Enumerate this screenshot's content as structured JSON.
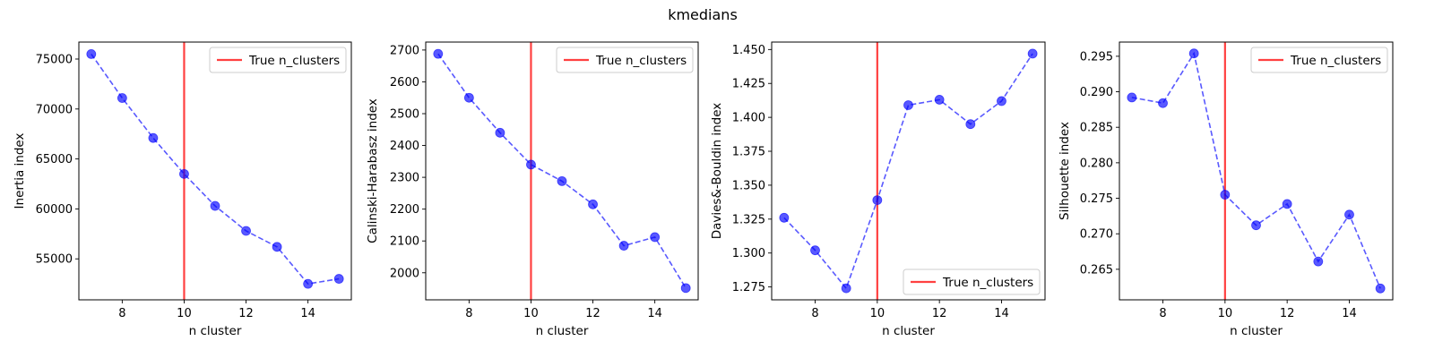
{
  "figure": {
    "title": "kmedians"
  },
  "chart_data": [
    {
      "type": "line",
      "ylabel": "Inertia index",
      "xlabel": "n cluster",
      "x": [
        7,
        8,
        9,
        10,
        11,
        12,
        13,
        14,
        15
      ],
      "series": [
        {
          "values": [
            75500,
            71100,
            67100,
            63500,
            60300,
            57800,
            56200,
            52500,
            53000
          ],
          "color": "#0000ff",
          "style": "dashed with circle markers"
        }
      ],
      "xlim": [
        6.6,
        15.4
      ],
      "ylim": [
        50900,
        76700
      ],
      "xticks": [
        "8",
        "10",
        "12",
        "14"
      ],
      "yticks": [
        "55000",
        "60000",
        "65000",
        "70000",
        "75000"
      ],
      "reference_line": {
        "x": 10,
        "label": "True n_clusters",
        "color": "#ff0000"
      },
      "legend": "top-right"
    },
    {
      "type": "line",
      "ylabel": "Calinski-Harabasz index",
      "xlabel": "n cluster",
      "x": [
        7,
        8,
        9,
        10,
        11,
        12,
        13,
        14,
        15
      ],
      "series": [
        {
          "values": [
            2688,
            2550,
            2440,
            2340,
            2288,
            2215,
            2085,
            2112,
            1952
          ],
          "color": "#0000ff",
          "style": "dashed with circle markers"
        }
      ],
      "xlim": [
        6.6,
        15.4
      ],
      "ylim": [
        1915,
        2725
      ],
      "xticks": [
        "8",
        "10",
        "12",
        "14"
      ],
      "yticks": [
        "2000",
        "2100",
        "2200",
        "2300",
        "2400",
        "2500",
        "2600",
        "2700"
      ],
      "reference_line": {
        "x": 10,
        "label": "True n_clusters",
        "color": "#ff0000"
      },
      "legend": "top-right"
    },
    {
      "type": "line",
      "ylabel": "Davies&-Bouldin index",
      "xlabel": "n cluster",
      "x": [
        7,
        8,
        9,
        10,
        11,
        12,
        13,
        14,
        15
      ],
      "series": [
        {
          "values": [
            1.326,
            1.302,
            1.274,
            1.339,
            1.409,
            1.413,
            1.395,
            1.412,
            1.447
          ],
          "color": "#0000ff",
          "style": "dashed with circle markers"
        }
      ],
      "xlim": [
        6.6,
        15.4
      ],
      "ylim": [
        1.2655,
        1.4555
      ],
      "xticks": [
        "8",
        "10",
        "12",
        "14"
      ],
      "yticks": [
        "1.275",
        "1.300",
        "1.325",
        "1.350",
        "1.375",
        "1.400",
        "1.425",
        "1.450"
      ],
      "reference_line": {
        "x": 10,
        "label": "True n_clusters",
        "color": "#ff0000"
      },
      "legend": "bottom-right"
    },
    {
      "type": "line",
      "ylabel": "Silhouette index",
      "xlabel": "n cluster",
      "x": [
        7,
        8,
        9,
        10,
        11,
        12,
        13,
        14,
        15
      ],
      "series": [
        {
          "values": [
            0.2892,
            0.2884,
            0.2954,
            0.2755,
            0.2712,
            0.2742,
            0.2661,
            0.2727,
            0.2623
          ],
          "color": "#0000ff",
          "style": "dashed with circle markers"
        }
      ],
      "xlim": [
        6.6,
        15.4
      ],
      "ylim": [
        0.2607,
        0.297
      ],
      "xticks": [
        "8",
        "10",
        "12",
        "14"
      ],
      "yticks": [
        "0.265",
        "0.270",
        "0.275",
        "0.280",
        "0.285",
        "0.290",
        "0.295"
      ],
      "reference_line": {
        "x": 10,
        "label": "True n_clusters",
        "color": "#ff0000"
      },
      "legend": "top-right"
    }
  ]
}
